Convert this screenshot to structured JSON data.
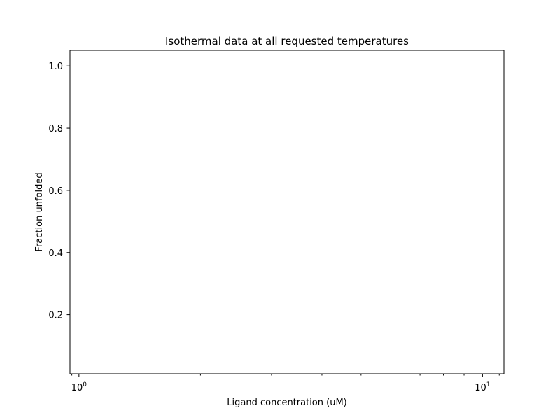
{
  "chart_data": {
    "type": "line",
    "title": "Isothermal data at all requested temperatures",
    "xlabel": "Ligand concentration (uM)",
    "ylabel": "Fraction unfolded",
    "x_scale": "log",
    "xlim": [
      0.95,
      11.3
    ],
    "ylim": [
      0.01,
      1.05
    ],
    "x_major_ticks": [
      {
        "value": 1,
        "label_base": "10",
        "label_exp": "0"
      },
      {
        "value": 10,
        "label_base": "10",
        "label_exp": "1"
      }
    ],
    "x_minor_ticks": [
      2,
      3,
      4,
      5,
      6,
      7,
      8,
      9,
      0.96,
      11
    ],
    "y_ticks": [
      {
        "value": 0.2,
        "label": "0.2"
      },
      {
        "value": 0.4,
        "label": "0.4"
      },
      {
        "value": 0.6,
        "label": "0.6"
      },
      {
        "value": 0.8,
        "label": "0.8"
      },
      {
        "value": 1.0,
        "label": "1.0"
      }
    ],
    "series": [],
    "grid": false,
    "legend": "none"
  }
}
